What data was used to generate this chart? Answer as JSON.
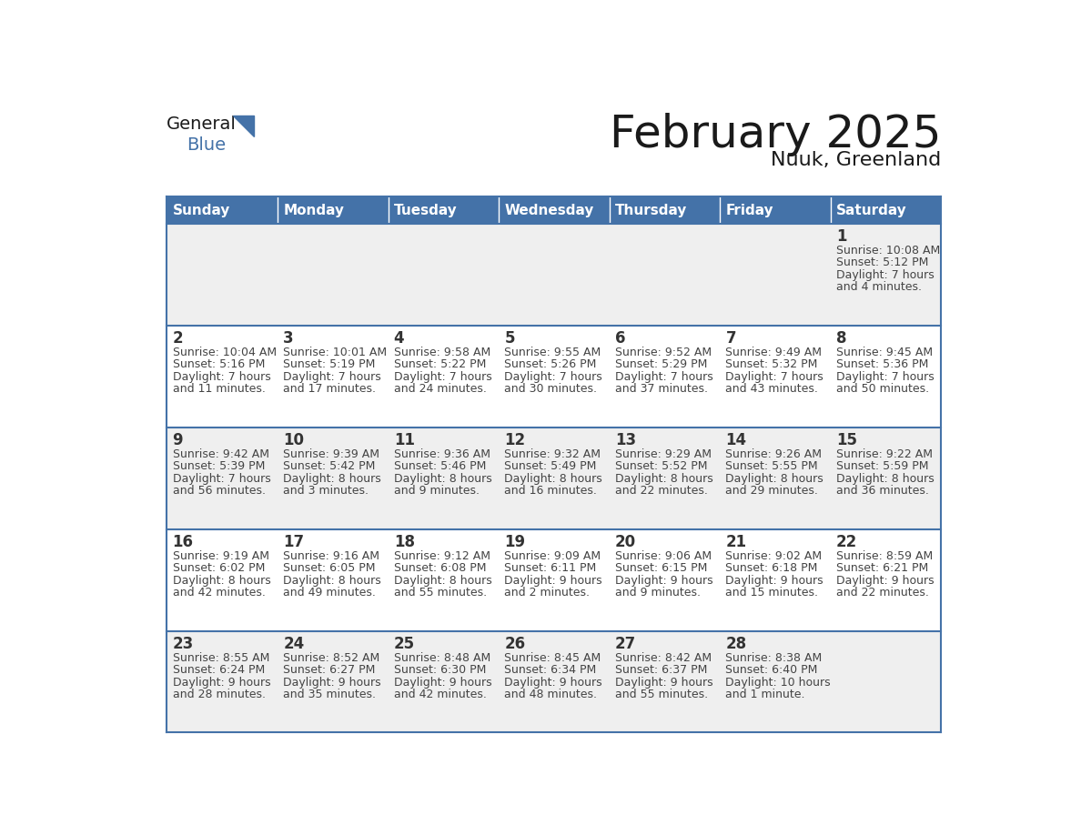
{
  "title": "February 2025",
  "subtitle": "Nuuk, Greenland",
  "days_of_week": [
    "Sunday",
    "Monday",
    "Tuesday",
    "Wednesday",
    "Thursday",
    "Friday",
    "Saturday"
  ],
  "header_bg": "#4472A8",
  "header_text": "#FFFFFF",
  "row_bg_odd": "#EFEFEF",
  "row_bg_even": "#FFFFFF",
  "border_color": "#4472A8",
  "title_color": "#1a1a1a",
  "day_number_color": "#333333",
  "info_text_color": "#444444",
  "logo_general_color": "#1a1a1a",
  "logo_blue_color": "#4472A8",
  "logo_triangle_color": "#4472A8",
  "weeks": [
    [
      {
        "day": null,
        "sunrise": null,
        "sunset": null,
        "daylight": null
      },
      {
        "day": null,
        "sunrise": null,
        "sunset": null,
        "daylight": null
      },
      {
        "day": null,
        "sunrise": null,
        "sunset": null,
        "daylight": null
      },
      {
        "day": null,
        "sunrise": null,
        "sunset": null,
        "daylight": null
      },
      {
        "day": null,
        "sunrise": null,
        "sunset": null,
        "daylight": null
      },
      {
        "day": null,
        "sunrise": null,
        "sunset": null,
        "daylight": null
      },
      {
        "day": 1,
        "sunrise": "10:08 AM",
        "sunset": "5:12 PM",
        "daylight": "7 hours\nand 4 minutes."
      }
    ],
    [
      {
        "day": 2,
        "sunrise": "10:04 AM",
        "sunset": "5:16 PM",
        "daylight": "7 hours\nand 11 minutes."
      },
      {
        "day": 3,
        "sunrise": "10:01 AM",
        "sunset": "5:19 PM",
        "daylight": "7 hours\nand 17 minutes."
      },
      {
        "day": 4,
        "sunrise": "9:58 AM",
        "sunset": "5:22 PM",
        "daylight": "7 hours\nand 24 minutes."
      },
      {
        "day": 5,
        "sunrise": "9:55 AM",
        "sunset": "5:26 PM",
        "daylight": "7 hours\nand 30 minutes."
      },
      {
        "day": 6,
        "sunrise": "9:52 AM",
        "sunset": "5:29 PM",
        "daylight": "7 hours\nand 37 minutes."
      },
      {
        "day": 7,
        "sunrise": "9:49 AM",
        "sunset": "5:32 PM",
        "daylight": "7 hours\nand 43 minutes."
      },
      {
        "day": 8,
        "sunrise": "9:45 AM",
        "sunset": "5:36 PM",
        "daylight": "7 hours\nand 50 minutes."
      }
    ],
    [
      {
        "day": 9,
        "sunrise": "9:42 AM",
        "sunset": "5:39 PM",
        "daylight": "7 hours\nand 56 minutes."
      },
      {
        "day": 10,
        "sunrise": "9:39 AM",
        "sunset": "5:42 PM",
        "daylight": "8 hours\nand 3 minutes."
      },
      {
        "day": 11,
        "sunrise": "9:36 AM",
        "sunset": "5:46 PM",
        "daylight": "8 hours\nand 9 minutes."
      },
      {
        "day": 12,
        "sunrise": "9:32 AM",
        "sunset": "5:49 PM",
        "daylight": "8 hours\nand 16 minutes."
      },
      {
        "day": 13,
        "sunrise": "9:29 AM",
        "sunset": "5:52 PM",
        "daylight": "8 hours\nand 22 minutes."
      },
      {
        "day": 14,
        "sunrise": "9:26 AM",
        "sunset": "5:55 PM",
        "daylight": "8 hours\nand 29 minutes."
      },
      {
        "day": 15,
        "sunrise": "9:22 AM",
        "sunset": "5:59 PM",
        "daylight": "8 hours\nand 36 minutes."
      }
    ],
    [
      {
        "day": 16,
        "sunrise": "9:19 AM",
        "sunset": "6:02 PM",
        "daylight": "8 hours\nand 42 minutes."
      },
      {
        "day": 17,
        "sunrise": "9:16 AM",
        "sunset": "6:05 PM",
        "daylight": "8 hours\nand 49 minutes."
      },
      {
        "day": 18,
        "sunrise": "9:12 AM",
        "sunset": "6:08 PM",
        "daylight": "8 hours\nand 55 minutes."
      },
      {
        "day": 19,
        "sunrise": "9:09 AM",
        "sunset": "6:11 PM",
        "daylight": "9 hours\nand 2 minutes."
      },
      {
        "day": 20,
        "sunrise": "9:06 AM",
        "sunset": "6:15 PM",
        "daylight": "9 hours\nand 9 minutes."
      },
      {
        "day": 21,
        "sunrise": "9:02 AM",
        "sunset": "6:18 PM",
        "daylight": "9 hours\nand 15 minutes."
      },
      {
        "day": 22,
        "sunrise": "8:59 AM",
        "sunset": "6:21 PM",
        "daylight": "9 hours\nand 22 minutes."
      }
    ],
    [
      {
        "day": 23,
        "sunrise": "8:55 AM",
        "sunset": "6:24 PM",
        "daylight": "9 hours\nand 28 minutes."
      },
      {
        "day": 24,
        "sunrise": "8:52 AM",
        "sunset": "6:27 PM",
        "daylight": "9 hours\nand 35 minutes."
      },
      {
        "day": 25,
        "sunrise": "8:48 AM",
        "sunset": "6:30 PM",
        "daylight": "9 hours\nand 42 minutes."
      },
      {
        "day": 26,
        "sunrise": "8:45 AM",
        "sunset": "6:34 PM",
        "daylight": "9 hours\nand 48 minutes."
      },
      {
        "day": 27,
        "sunrise": "8:42 AM",
        "sunset": "6:37 PM",
        "daylight": "9 hours\nand 55 minutes."
      },
      {
        "day": 28,
        "sunrise": "8:38 AM",
        "sunset": "6:40 PM",
        "daylight": "10 hours\nand 1 minute."
      },
      {
        "day": null,
        "sunrise": null,
        "sunset": null,
        "daylight": null
      }
    ]
  ]
}
